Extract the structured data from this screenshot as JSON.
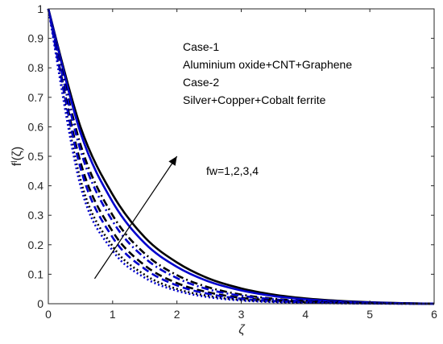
{
  "chart_data": {
    "type": "line",
    "x_range": [
      0,
      6
    ],
    "y_range": [
      0,
      1
    ],
    "xlabel": "ζ",
    "ylabel": "f'(ζ)",
    "ylabel_parts": {
      "base": "f",
      "sup": "l",
      "arg": "(ζ)"
    },
    "x_ticks": [
      0,
      1,
      2,
      3,
      4,
      5,
      6
    ],
    "y_ticks": [
      0,
      0.1,
      0.2,
      0.3,
      0.4,
      0.5,
      0.6,
      0.7,
      0.8,
      0.9,
      1
    ],
    "grid": false,
    "annotations": {
      "legend_lines": [
        "Case-1",
        "Aluminium oxide+CNT+Graphene",
        "Case-2",
        "Silver+Copper+Cobalt ferrite"
      ],
      "parameter_label": "fw=1,2,3,4",
      "arrow": {
        "from": [
          0.72,
          0.085
        ],
        "to": [
          2.0,
          0.5
        ],
        "meaning": "increasing fw"
      }
    },
    "series": [
      {
        "case": "Case-1",
        "fw": 1,
        "color": "#000000",
        "style": "solid",
        "x": [
          0,
          0.5,
          1,
          1.5,
          2,
          2.5,
          3,
          3.5,
          4,
          4.5,
          5,
          5.5,
          6
        ],
        "y": [
          1,
          0.6,
          0.37,
          0.225,
          0.14,
          0.085,
          0.052,
          0.031,
          0.018,
          0.01,
          0.005,
          0.002,
          0
        ]
      },
      {
        "case": "Case-2",
        "fw": 1,
        "color": "#0000cd",
        "style": "solid",
        "x": [
          0,
          0.5,
          1,
          1.5,
          2,
          2.5,
          3,
          3.5,
          4,
          4.5,
          5,
          5.5,
          6
        ],
        "y": [
          1,
          0.58,
          0.345,
          0.205,
          0.125,
          0.075,
          0.045,
          0.026,
          0.015,
          0.008,
          0.004,
          0.0015,
          0
        ]
      },
      {
        "case": "Case-1",
        "fw": 2,
        "color": "#000000",
        "style": "dashdot",
        "x": [
          0,
          0.5,
          1,
          1.5,
          2,
          2.5,
          3,
          3.5,
          4,
          4.5,
          5,
          5.5,
          6
        ],
        "y": [
          1,
          0.54,
          0.3,
          0.17,
          0.097,
          0.055,
          0.031,
          0.017,
          0.009,
          0.005,
          0.002,
          0.001,
          0
        ]
      },
      {
        "case": "Case-2",
        "fw": 2,
        "color": "#0000cd",
        "style": "dashdot",
        "x": [
          0,
          0.5,
          1,
          1.5,
          2,
          2.5,
          3,
          3.5,
          4,
          4.5,
          5,
          5.5,
          6
        ],
        "y": [
          1,
          0.52,
          0.28,
          0.155,
          0.087,
          0.048,
          0.027,
          0.015,
          0.008,
          0.004,
          0.002,
          0.0008,
          0
        ]
      },
      {
        "case": "Case-1",
        "fw": 3,
        "color": "#000000",
        "style": "dashed",
        "x": [
          0,
          0.5,
          1,
          1.5,
          2,
          2.5,
          3,
          3.5,
          4,
          4.5,
          5,
          5.5,
          6
        ],
        "y": [
          1,
          0.48,
          0.245,
          0.13,
          0.07,
          0.038,
          0.02,
          0.011,
          0.006,
          0.003,
          0.0015,
          0.0005,
          0
        ]
      },
      {
        "case": "Case-2",
        "fw": 3,
        "color": "#0000cd",
        "style": "dashed",
        "x": [
          0,
          0.5,
          1,
          1.5,
          2,
          2.5,
          3,
          3.5,
          4,
          4.5,
          5,
          5.5,
          6
        ],
        "y": [
          1,
          0.46,
          0.225,
          0.118,
          0.062,
          0.033,
          0.017,
          0.009,
          0.005,
          0.0025,
          0.001,
          0.0004,
          0
        ]
      },
      {
        "case": "Case-1",
        "fw": 4,
        "color": "#000000",
        "style": "dotted",
        "x": [
          0,
          0.5,
          1,
          1.5,
          2,
          2.5,
          3,
          3.5,
          4,
          4.5,
          5,
          5.5,
          6
        ],
        "y": [
          1,
          0.42,
          0.195,
          0.098,
          0.05,
          0.026,
          0.013,
          0.007,
          0.0035,
          0.0018,
          0.0008,
          0.0003,
          0
        ]
      },
      {
        "case": "Case-2",
        "fw": 4,
        "color": "#0000cd",
        "style": "dotted",
        "x": [
          0,
          0.5,
          1,
          1.5,
          2,
          2.5,
          3,
          3.5,
          4,
          4.5,
          5,
          5.5,
          6
        ],
        "y": [
          1,
          0.4,
          0.18,
          0.088,
          0.044,
          0.022,
          0.011,
          0.0055,
          0.0028,
          0.0014,
          0.0006,
          0.0002,
          0
        ]
      }
    ]
  }
}
